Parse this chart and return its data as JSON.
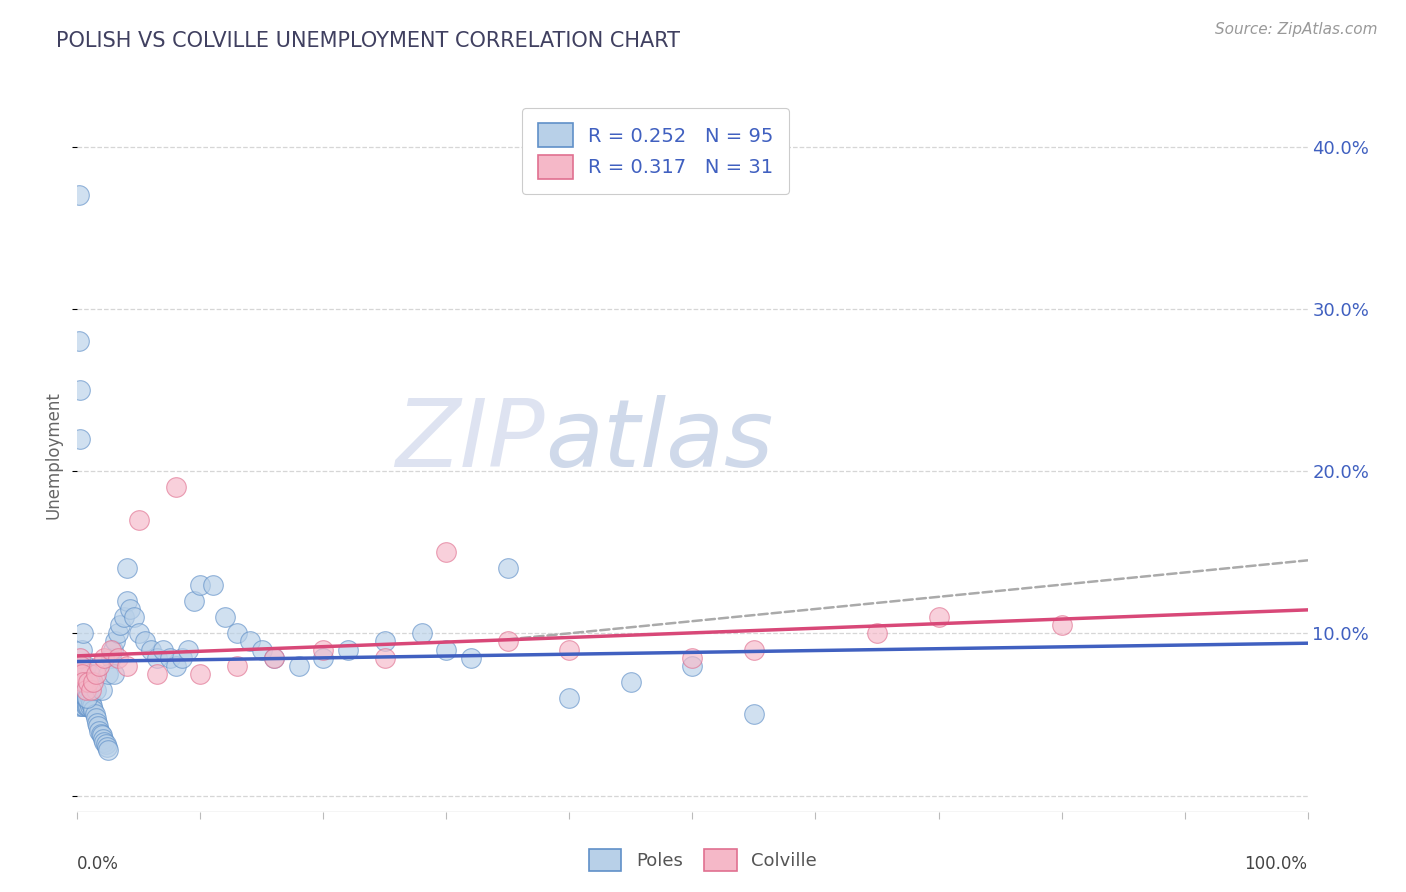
{
  "title": "POLISH VS COLVILLE UNEMPLOYMENT CORRELATION CHART",
  "source": "Source: ZipAtlas.com",
  "ylabel": "Unemployment",
  "y_ticks": [
    0.0,
    0.1,
    0.2,
    0.3,
    0.4
  ],
  "y_tick_labels": [
    "",
    "10.0%",
    "20.0%",
    "30.0%",
    "40.0%"
  ],
  "xlim": [
    0.0,
    1.0
  ],
  "ylim": [
    -0.01,
    0.43
  ],
  "poles_R": 0.252,
  "poles_N": 95,
  "colville_R": 0.317,
  "colville_N": 31,
  "poles_color": "#b8d0e8",
  "colville_color": "#f5b8c8",
  "poles_edge_color": "#6090c8",
  "colville_edge_color": "#e07090",
  "poles_line_color": "#4060c0",
  "colville_line_color": "#d84878",
  "background_color": "#ffffff",
  "title_color": "#404060",
  "source_color": "#999999",
  "legend_text_color": "#4060c0",
  "grid_color": "#cccccc",
  "poles_x": [
    0.001,
    0.001,
    0.001,
    0.002,
    0.002,
    0.002,
    0.003,
    0.003,
    0.003,
    0.004,
    0.004,
    0.004,
    0.005,
    0.005,
    0.005,
    0.006,
    0.006,
    0.007,
    0.007,
    0.008,
    0.008,
    0.009,
    0.009,
    0.01,
    0.01,
    0.011,
    0.012,
    0.013,
    0.014,
    0.015,
    0.016,
    0.017,
    0.018,
    0.019,
    0.02,
    0.021,
    0.022,
    0.023,
    0.024,
    0.025,
    0.027,
    0.029,
    0.031,
    0.033,
    0.035,
    0.038,
    0.04,
    0.043,
    0.046,
    0.05,
    0.055,
    0.06,
    0.065,
    0.07,
    0.075,
    0.08,
    0.085,
    0.09,
    0.095,
    0.1,
    0.11,
    0.12,
    0.13,
    0.14,
    0.15,
    0.16,
    0.18,
    0.2,
    0.22,
    0.25,
    0.28,
    0.3,
    0.32,
    0.35,
    0.4,
    0.45,
    0.5,
    0.55,
    0.001,
    0.001,
    0.002,
    0.002,
    0.003,
    0.004,
    0.005,
    0.006,
    0.007,
    0.008,
    0.01,
    0.012,
    0.015,
    0.02,
    0.025,
    0.03,
    0.04
  ],
  "poles_y": [
    0.055,
    0.065,
    0.07,
    0.06,
    0.065,
    0.07,
    0.058,
    0.063,
    0.068,
    0.055,
    0.06,
    0.065,
    0.055,
    0.06,
    0.07,
    0.058,
    0.063,
    0.055,
    0.06,
    0.055,
    0.06,
    0.055,
    0.058,
    0.055,
    0.06,
    0.057,
    0.055,
    0.053,
    0.05,
    0.048,
    0.045,
    0.043,
    0.04,
    0.038,
    0.037,
    0.035,
    0.033,
    0.032,
    0.03,
    0.028,
    0.085,
    0.09,
    0.095,
    0.1,
    0.105,
    0.11,
    0.12,
    0.115,
    0.11,
    0.1,
    0.095,
    0.09,
    0.085,
    0.09,
    0.085,
    0.08,
    0.085,
    0.09,
    0.12,
    0.13,
    0.13,
    0.11,
    0.1,
    0.095,
    0.09,
    0.085,
    0.08,
    0.085,
    0.09,
    0.095,
    0.1,
    0.09,
    0.085,
    0.14,
    0.06,
    0.07,
    0.08,
    0.05,
    0.37,
    0.28,
    0.22,
    0.25,
    0.08,
    0.09,
    0.1,
    0.07,
    0.08,
    0.06,
    0.075,
    0.07,
    0.065,
    0.065,
    0.075,
    0.075,
    0.14
  ],
  "colville_x": [
    0.001,
    0.002,
    0.003,
    0.004,
    0.005,
    0.007,
    0.009,
    0.011,
    0.013,
    0.015,
    0.018,
    0.022,
    0.027,
    0.033,
    0.04,
    0.05,
    0.065,
    0.08,
    0.1,
    0.13,
    0.16,
    0.2,
    0.25,
    0.3,
    0.35,
    0.4,
    0.5,
    0.55,
    0.65,
    0.7,
    0.8
  ],
  "colville_y": [
    0.075,
    0.085,
    0.08,
    0.075,
    0.07,
    0.065,
    0.07,
    0.065,
    0.07,
    0.075,
    0.08,
    0.085,
    0.09,
    0.085,
    0.08,
    0.17,
    0.075,
    0.19,
    0.075,
    0.08,
    0.085,
    0.09,
    0.085,
    0.15,
    0.095,
    0.09,
    0.085,
    0.09,
    0.1,
    0.11,
    0.105
  ]
}
